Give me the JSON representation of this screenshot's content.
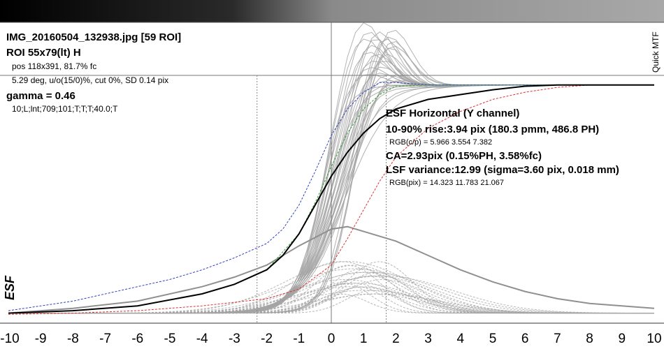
{
  "header": {
    "filename": "IMG_20160504_132938.jpg [59 ROI]",
    "roi": "ROI 55x79(lt) H",
    "pos": "pos 118x391, 81.7% fc",
    "angle": "5.29 deg, u/o(15/0)%, cut 0%, SD 0.14 pix",
    "gamma": "gamma = 0.46",
    "settings": "10;L;lnt;709;101;T;T;T;40.0;T"
  },
  "side_label": "Quick MTF",
  "results": {
    "title": "ESF Horizontal (Y channel)",
    "rise": "10-90% rise:3.94 pix (180.3 pmm, 486.8 PH)",
    "rgb_cp": "RGB(c/p) = 5.966 3.554 7.382",
    "ca": "CA=2.93pix (0.15%PH, 3.58%fc)",
    "lsf": "LSF variance:12.99 (sigma=3.60 pix, 0.018 mm)",
    "rgb_pix": "RGB(pix) = 14.323 11.783 21.067"
  },
  "colors": {
    "background": "#ffffff",
    "gray_curves": "#a4a4a4",
    "main_curve": "#000000",
    "red_channel": "#e03030",
    "green_channel": "#30a030",
    "blue_channel": "#3040c0",
    "gridline": "#888888"
  },
  "chart_data": {
    "type": "line",
    "ylabel": "ESF",
    "xlim": [
      -10,
      10
    ],
    "ylim": [
      0,
      1
    ],
    "x_ticks": [
      -10,
      -9,
      -8,
      -7,
      -6,
      -5,
      -4,
      -3,
      -2,
      -1,
      0,
      1,
      2,
      3,
      4,
      5,
      6,
      7,
      8,
      9,
      10
    ],
    "markers": {
      "rise_10": -2.3,
      "rise_90": 1.7
    },
    "series": [
      {
        "role": "esf-main",
        "color": "#000000",
        "x": [
          -10,
          -8,
          -6,
          -4,
          -3,
          -2,
          -1.5,
          -1,
          -0.5,
          0,
          0.5,
          1,
          1.5,
          2,
          3,
          4,
          5,
          6,
          7,
          8,
          9,
          10
        ],
        "y": [
          0.01,
          0.02,
          0.04,
          0.09,
          0.13,
          0.19,
          0.25,
          0.34,
          0.46,
          0.58,
          0.68,
          0.76,
          0.82,
          0.86,
          0.9,
          0.92,
          0.94,
          0.955,
          0.96,
          0.96,
          0.96,
          0.96
        ]
      },
      {
        "role": "esf-red",
        "color": "#e03030",
        "x": [
          -10,
          -8,
          -6,
          -4,
          -3,
          -2,
          -1,
          0,
          0.5,
          1,
          1.5,
          2,
          3,
          4,
          5,
          6,
          7,
          8,
          9,
          10
        ],
        "y": [
          0.005,
          0.01,
          0.02,
          0.04,
          0.055,
          0.07,
          0.11,
          0.21,
          0.32,
          0.44,
          0.56,
          0.66,
          0.78,
          0.85,
          0.9,
          0.93,
          0.95,
          0.96,
          0.96,
          0.96
        ]
      },
      {
        "role": "esf-green",
        "color": "#30a030",
        "x": [
          -10,
          -8,
          -6,
          -4,
          -3,
          -2,
          -1,
          -0.5,
          0,
          0.5,
          1,
          1.5,
          2,
          3,
          4,
          6,
          8,
          10
        ],
        "y": [
          0.01,
          0.02,
          0.04,
          0.09,
          0.13,
          0.19,
          0.34,
          0.47,
          0.62,
          0.76,
          0.86,
          0.92,
          0.955,
          0.96,
          0.96,
          0.96,
          0.96,
          0.96
        ]
      },
      {
        "role": "esf-blue",
        "color": "#3040c0",
        "x": [
          -10,
          -8,
          -6,
          -5,
          -4,
          -3,
          -2,
          -1.5,
          -1,
          -0.5,
          0,
          0.5,
          1,
          1.5,
          2,
          3,
          4,
          6,
          8,
          10
        ],
        "y": [
          0.02,
          0.06,
          0.12,
          0.15,
          0.19,
          0.24,
          0.3,
          0.36,
          0.46,
          0.6,
          0.75,
          0.86,
          0.93,
          0.97,
          0.97,
          0.96,
          0.96,
          0.96,
          0.96,
          0.96
        ]
      },
      {
        "role": "lsf",
        "color": "#909090",
        "x": [
          -10,
          -8,
          -6,
          -4,
          -3,
          -2,
          -1,
          0,
          0.5,
          1,
          2,
          3,
          4,
          5,
          6,
          7,
          8,
          9,
          10
        ],
        "y": [
          0.01,
          0.03,
          0.06,
          0.12,
          0.16,
          0.21,
          0.29,
          0.36,
          0.37,
          0.35,
          0.31,
          0.25,
          0.19,
          0.14,
          0.1,
          0.07,
          0.05,
          0.04,
          0.03
        ]
      }
    ]
  }
}
